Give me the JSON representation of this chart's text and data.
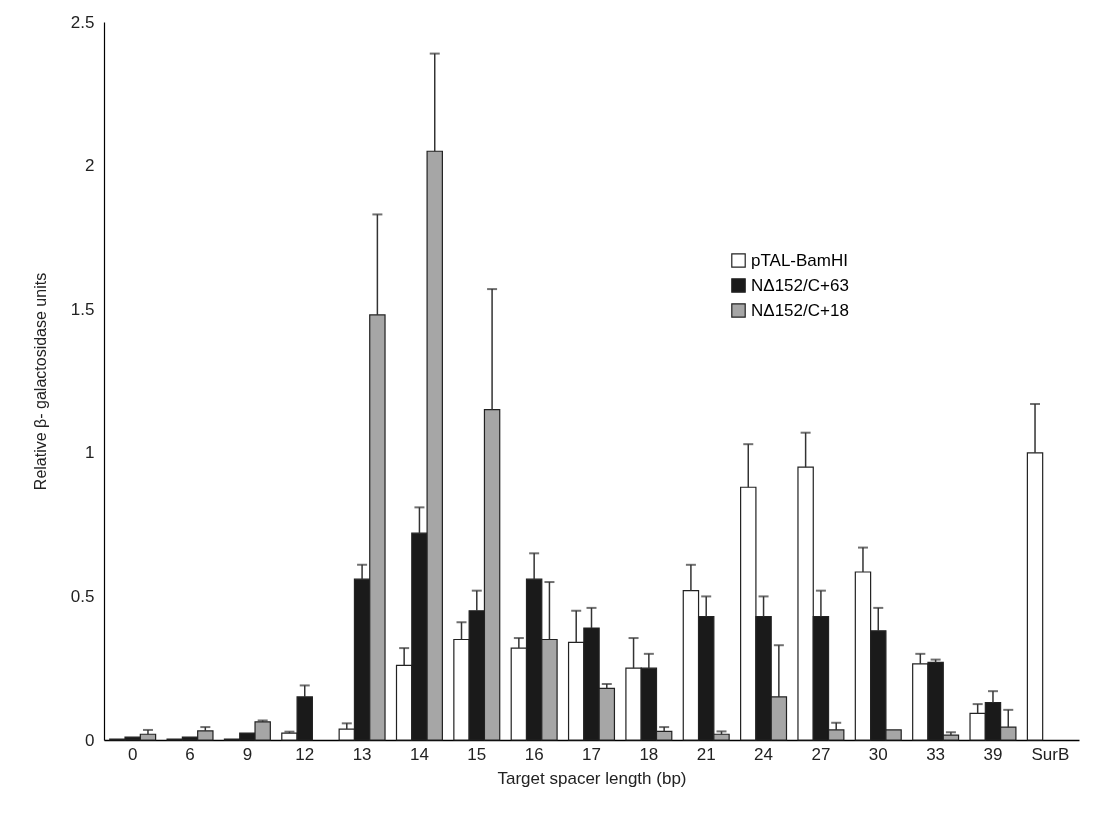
{
  "chart_data": {
    "type": "bar",
    "xlabel": "Target spacer length (bp)",
    "ylabel": "Relative β- galactosidase units",
    "categories": [
      "0",
      "6",
      "9",
      "12",
      "13",
      "14",
      "15",
      "16",
      "17",
      "18",
      "21",
      "24",
      "27",
      "30",
      "33",
      "39",
      "SurB"
    ],
    "series": [
      {
        "name": "pTAL-BamHI",
        "color": "#ffffff",
        "values": [
          0.003,
          0.003,
          0.003,
          0.024,
          0.038,
          0.26,
          0.35,
          0.32,
          0.34,
          0.25,
          0.52,
          0.88,
          0.95,
          0.585,
          0.265,
          0.093,
          1.0
        ],
        "errors": [
          null,
          null,
          null,
          [
            0.024,
            0.029
          ],
          [
            0.038,
            0.058
          ],
          [
            0.26,
            0.32
          ],
          [
            0.35,
            0.41
          ],
          [
            0.32,
            0.355
          ],
          [
            0.34,
            0.45
          ],
          [
            0.25,
            0.355
          ],
          [
            0.52,
            0.61
          ],
          [
            0.88,
            1.03
          ],
          [
            0.95,
            1.07
          ],
          [
            0.585,
            0.67
          ],
          [
            0.265,
            0.3
          ],
          [
            0.093,
            0.125
          ],
          [
            1.0,
            1.17
          ]
        ]
      },
      {
        "name": "NΔ152/C+63",
        "color": "#1a1a1a",
        "values": [
          0.01,
          0.01,
          0.024,
          0.15,
          0.56,
          0.72,
          0.45,
          0.56,
          0.39,
          0.25,
          0.43,
          0.43,
          0.43,
          0.38,
          0.27,
          0.13,
          null
        ],
        "errors": [
          null,
          null,
          null,
          [
            0.15,
            0.19
          ],
          [
            0.56,
            0.61
          ],
          [
            0.72,
            0.81
          ],
          [
            0.45,
            0.52
          ],
          [
            0.56,
            0.65
          ],
          [
            0.39,
            0.46
          ],
          [
            0.25,
            0.3
          ],
          [
            0.43,
            0.5
          ],
          [
            0.43,
            0.5
          ],
          [
            0.43,
            0.52
          ],
          [
            0.38,
            0.46
          ],
          [
            0.27,
            0.28
          ],
          [
            0.13,
            0.17
          ],
          null
        ]
      },
      {
        "name": "NΔ152/C+18",
        "color": "#a6a6a6",
        "values": [
          0.02,
          0.032,
          0.063,
          null,
          1.48,
          2.05,
          1.15,
          0.35,
          0.18,
          0.03,
          0.02,
          0.15,
          0.035,
          0.035,
          0.017,
          0.045,
          null
        ],
        "errors": [
          [
            0.02,
            0.035
          ],
          [
            0.032,
            0.045
          ],
          [
            0.063,
            0.068
          ],
          null,
          [
            1.48,
            1.83
          ],
          [
            2.05,
            2.39
          ],
          [
            1.15,
            1.57
          ],
          [
            0.35,
            0.55
          ],
          [
            0.18,
            0.195
          ],
          [
            0.03,
            0.045
          ],
          [
            0.02,
            0.03
          ],
          [
            0.15,
            0.33
          ],
          [
            0.035,
            0.06
          ],
          null,
          [
            0.017,
            0.027
          ],
          [
            0.045,
            0.105
          ],
          null
        ]
      }
    ],
    "ylim": [
      0,
      2.5
    ],
    "yticks": [
      0,
      0.5,
      1,
      1.5,
      2,
      2.5
    ],
    "grid": false,
    "legend": "top right"
  }
}
